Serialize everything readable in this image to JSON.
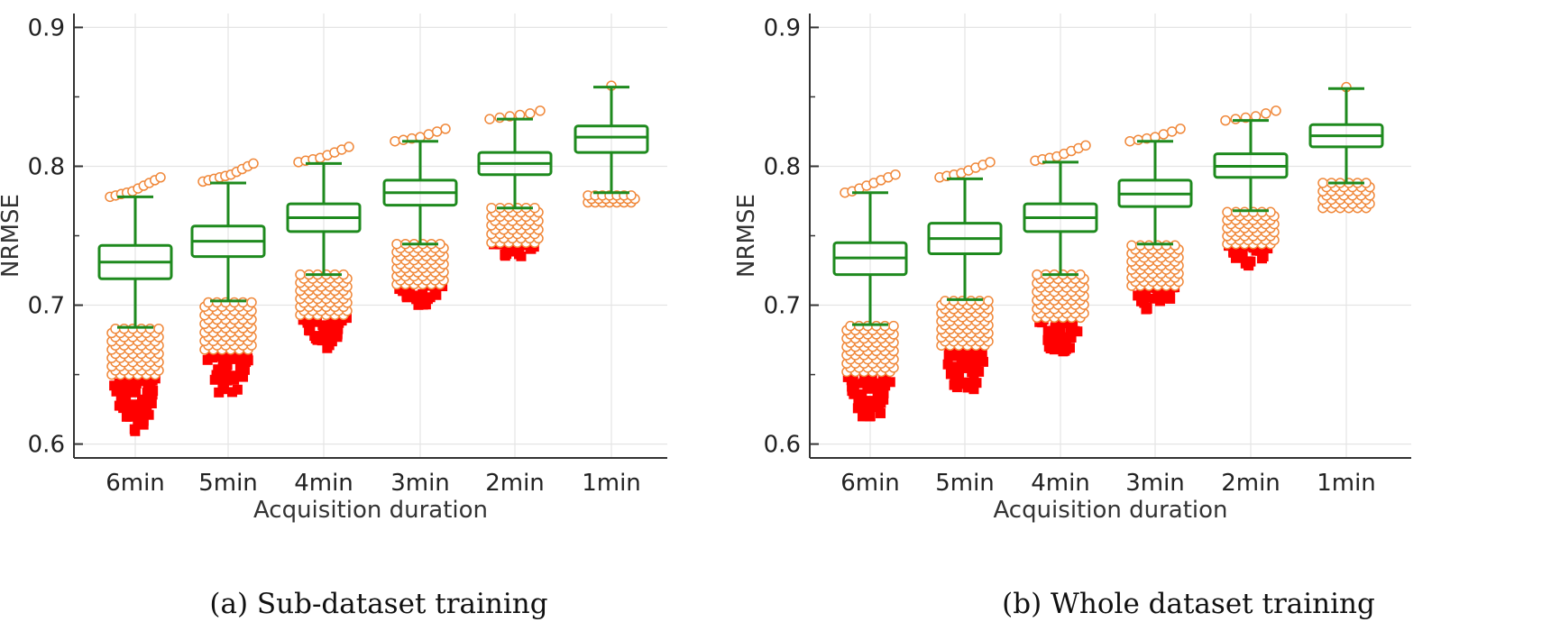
{
  "panels": [
    {
      "caption": "(a) Sub-dataset training"
    },
    {
      "caption": "(b) Whole dataset training"
    }
  ],
  "colors": {
    "box": "#1e8a1e",
    "outlier_fill": "#ffffff",
    "outlier_edge": "#f0883a",
    "extreme": "#ff0000",
    "grid": "#e4e4e4",
    "axis": "#333333"
  },
  "chart_data": [
    {
      "type": "box",
      "title": "",
      "xlabel": "Acquisition duration",
      "ylabel": "NRMSE",
      "ylim": [
        0.59,
        0.91
      ],
      "yticks": [
        0.6,
        0.7,
        0.8,
        0.9
      ],
      "grid": true,
      "categories": [
        "6min",
        "5min",
        "4min",
        "3min",
        "2min",
        "1min"
      ],
      "boxes": [
        {
          "whisker_low": 0.684,
          "q1": 0.719,
          "median": 0.731,
          "q3": 0.743,
          "whisker_high": 0.778,
          "outliers_high": [
            0.778,
            0.779,
            0.78,
            0.781,
            0.782,
            0.784,
            0.786,
            0.788,
            0.79,
            0.792
          ],
          "outliers_low_range": [
            0.65,
            0.683
          ],
          "extremes_low_range": [
            0.609,
            0.648
          ]
        },
        {
          "whisker_low": 0.703,
          "q1": 0.735,
          "median": 0.746,
          "q3": 0.757,
          "whisker_high": 0.788,
          "outliers_high": [
            0.789,
            0.79,
            0.791,
            0.792,
            0.793,
            0.794,
            0.796,
            0.798,
            0.8,
            0.802
          ],
          "outliers_low_range": [
            0.668,
            0.702
          ],
          "extremes_low_range": [
            0.636,
            0.666
          ]
        },
        {
          "whisker_low": 0.722,
          "q1": 0.753,
          "median": 0.763,
          "q3": 0.773,
          "whisker_high": 0.802,
          "outliers_high": [
            0.803,
            0.804,
            0.805,
            0.806,
            0.808,
            0.81,
            0.812,
            0.814
          ],
          "outliers_low_range": [
            0.693,
            0.722
          ],
          "extremes_low_range": [
            0.668,
            0.691
          ]
        },
        {
          "whisker_low": 0.744,
          "q1": 0.772,
          "median": 0.781,
          "q3": 0.79,
          "whisker_high": 0.818,
          "outliers_high": [
            0.818,
            0.819,
            0.82,
            0.821,
            0.823,
            0.825,
            0.827
          ],
          "outliers_low_range": [
            0.715,
            0.744
          ],
          "extremes_low_range": [
            0.7,
            0.714
          ]
        },
        {
          "whisker_low": 0.77,
          "q1": 0.794,
          "median": 0.802,
          "q3": 0.81,
          "whisker_high": 0.834,
          "outliers_high": [
            0.834,
            0.835,
            0.836,
            0.837,
            0.838,
            0.84
          ],
          "outliers_low_range": [
            0.745,
            0.77
          ],
          "extremes_low_range": [
            0.734,
            0.744
          ]
        },
        {
          "whisker_low": 0.781,
          "q1": 0.81,
          "median": 0.821,
          "q3": 0.829,
          "whisker_high": 0.857,
          "outliers_high": [
            0.858
          ],
          "outliers_low_range": [
            0.774,
            0.779
          ],
          "extremes_low_range": null
        }
      ]
    },
    {
      "type": "box",
      "title": "",
      "xlabel": "Acquisition duration",
      "ylabel": "NRMSE",
      "ylim": [
        0.59,
        0.91
      ],
      "yticks": [
        0.6,
        0.7,
        0.8,
        0.9
      ],
      "grid": true,
      "categories": [
        "6min",
        "5min",
        "4min",
        "3min",
        "2min",
        "1min"
      ],
      "boxes": [
        {
          "whisker_low": 0.686,
          "q1": 0.722,
          "median": 0.734,
          "q3": 0.745,
          "whisker_high": 0.781,
          "outliers_high": [
            0.781,
            0.782,
            0.784,
            0.786,
            0.788,
            0.79,
            0.792,
            0.794
          ],
          "outliers_low_range": [
            0.652,
            0.685
          ],
          "extremes_low_range": [
            0.618,
            0.65
          ]
        },
        {
          "whisker_low": 0.704,
          "q1": 0.737,
          "median": 0.748,
          "q3": 0.759,
          "whisker_high": 0.791,
          "outliers_high": [
            0.792,
            0.793,
            0.794,
            0.795,
            0.797,
            0.799,
            0.801,
            0.803
          ],
          "outliers_low_range": [
            0.671,
            0.703
          ],
          "extremes_low_range": [
            0.639,
            0.669
          ]
        },
        {
          "whisker_low": 0.722,
          "q1": 0.753,
          "median": 0.763,
          "q3": 0.773,
          "whisker_high": 0.803,
          "outliers_high": [
            0.804,
            0.805,
            0.806,
            0.807,
            0.809,
            0.811,
            0.813,
            0.815
          ],
          "outliers_low_range": [
            0.691,
            0.722
          ],
          "extremes_low_range": [
            0.666,
            0.69
          ]
        },
        {
          "whisker_low": 0.744,
          "q1": 0.771,
          "median": 0.78,
          "q3": 0.79,
          "whisker_high": 0.818,
          "outliers_high": [
            0.818,
            0.819,
            0.82,
            0.821,
            0.823,
            0.825,
            0.827
          ],
          "outliers_low_range": [
            0.714,
            0.743
          ],
          "extremes_low_range": [
            0.694,
            0.713
          ]
        },
        {
          "whisker_low": 0.768,
          "q1": 0.792,
          "median": 0.8,
          "q3": 0.809,
          "whisker_high": 0.833,
          "outliers_high": [
            0.833,
            0.834,
            0.835,
            0.836,
            0.838,
            0.84
          ],
          "outliers_low_range": [
            0.744,
            0.767
          ],
          "extremes_low_range": [
            0.728,
            0.743
          ]
        },
        {
          "whisker_low": 0.788,
          "q1": 0.814,
          "median": 0.822,
          "q3": 0.83,
          "whisker_high": 0.856,
          "outliers_high": [
            0.857
          ],
          "outliers_low_range": [
            0.77,
            0.788
          ],
          "extremes_low_range": null
        }
      ]
    }
  ]
}
